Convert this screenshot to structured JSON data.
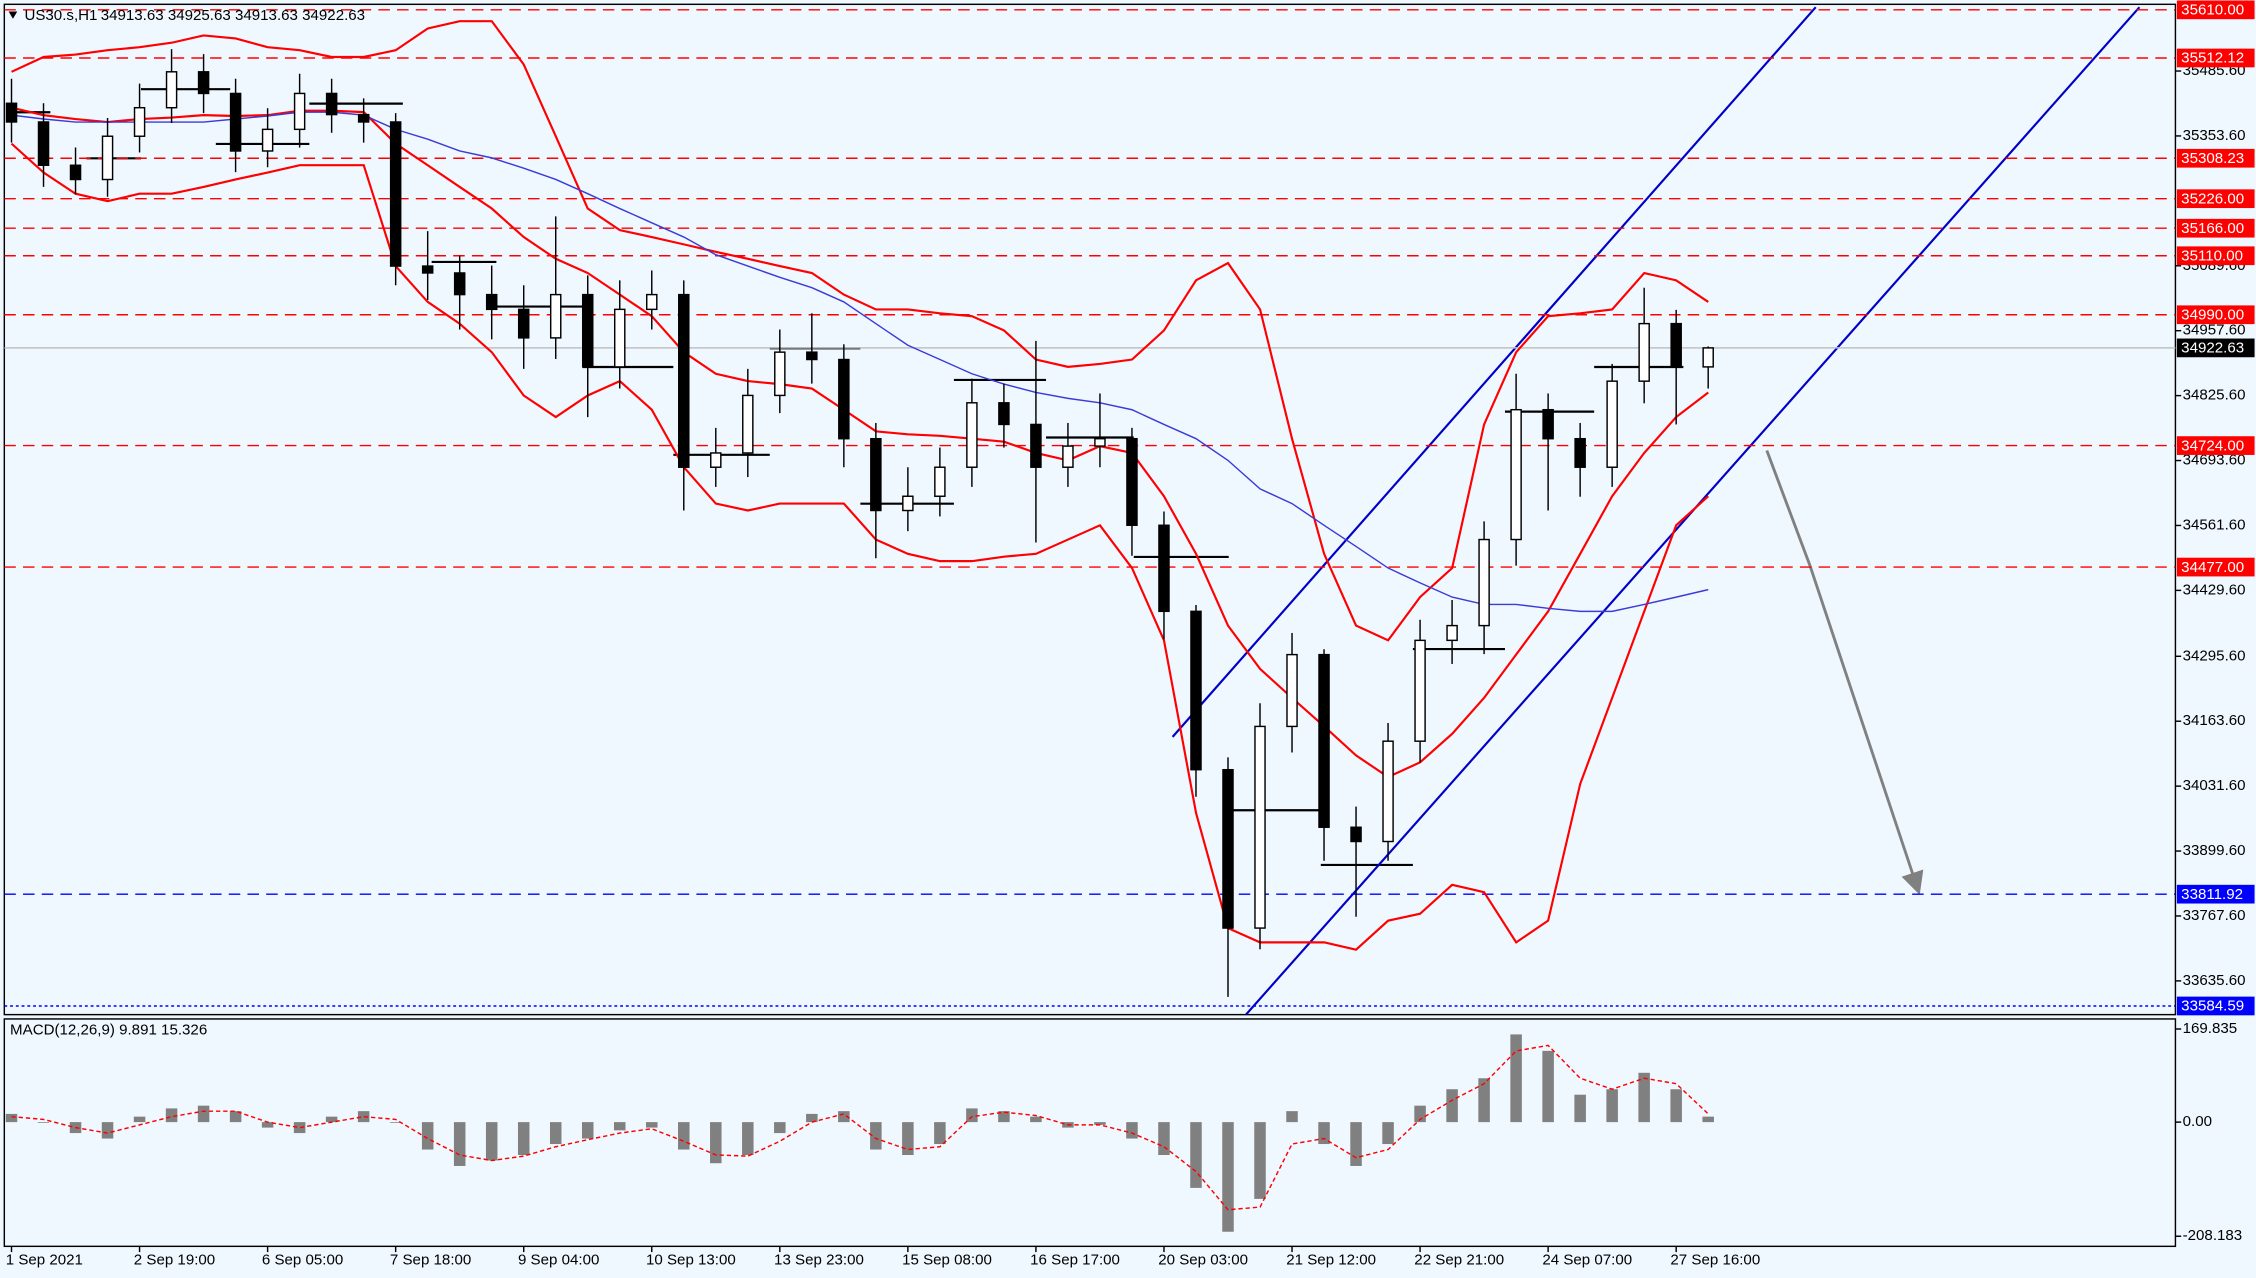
{
  "chart_data": {
    "type": "candlestick",
    "symbol": "US30.s,H1",
    "quote": "34913.63 34925.63 34913.63 34922.63",
    "ylim": [
      33567,
      35630
    ],
    "yticks": [
      {
        "value": 35485.6,
        "label": "35485.60"
      },
      {
        "value": 35353.6,
        "label": "35353.60"
      },
      {
        "value": 35089.6,
        "label": "35089.60"
      },
      {
        "value": 34957.6,
        "label": "34957.60"
      },
      {
        "value": 34825.6,
        "label": "34825.60"
      },
      {
        "value": 34693.6,
        "label": "34693.60"
      },
      {
        "value": 34561.6,
        "label": "34561.60"
      },
      {
        "value": 34429.6,
        "label": "34429.60"
      },
      {
        "value": 34295.6,
        "label": "34295.60"
      },
      {
        "value": 34163.6,
        "label": "34163.60"
      },
      {
        "value": 34031.6,
        "label": "34031.60"
      },
      {
        "value": 33899.6,
        "label": "33899.60"
      },
      {
        "value": 33767.6,
        "label": "33767.60"
      },
      {
        "value": 33635.6,
        "label": "33635.60"
      }
    ],
    "categories": [
      "1 Sep 2021",
      null,
      null,
      null,
      "2 Sep 19:00",
      null,
      null,
      null,
      "6 Sep 05:00",
      null,
      null,
      null,
      "7 Sep 18:00",
      null,
      null,
      null,
      "9 Sep 04:00",
      null,
      null,
      null,
      "10 Sep 13:00",
      null,
      null,
      null,
      "13 Sep 23:00",
      null,
      null,
      null,
      "15 Sep 08:00",
      null,
      null,
      null,
      "16 Sep 17:00",
      null,
      null,
      null,
      "20 Sep 03:00",
      null,
      null,
      null,
      "21 Sep 12:00",
      null,
      null,
      null,
      "22 Sep 21:00",
      null,
      null,
      null,
      "24 Sep 07:00",
      null,
      null,
      null,
      "27 Sep 16:00",
      null
    ],
    "open": [
      35420,
      35382,
      35294,
      35265,
      35353,
      35411,
      35484,
      35440,
      35323,
      35367,
      35440,
      35397,
      35382,
      35089,
      35075,
      35031,
      35001,
      34943,
      35031,
      34884,
      35001,
      35031,
      34680,
      34709,
      34826,
      34914,
      34899,
      34738,
      34592,
      34621,
      34680,
      34811,
      34767,
      34680,
      34723,
      34738,
      34562,
      34387,
      34065,
      33743,
      34153,
      34299,
      33948,
      33919,
      34123,
      34328,
      34358,
      34533,
      34797,
      34738,
      34680,
      34855,
      34972,
      34884
    ],
    "high": [
      35470,
      35420,
      35330,
      35390,
      35460,
      35530,
      35520,
      35470,
      35410,
      35480,
      35470,
      35430,
      35400,
      35160,
      35110,
      35090,
      35050,
      35190,
      35070,
      35060,
      35080,
      35060,
      34760,
      34880,
      34960,
      34993,
      34930,
      34770,
      34680,
      34720,
      34860,
      34850,
      34937,
      34770,
      34830,
      34760,
      34590,
      34400,
      34090,
      34200,
      34343,
      34310,
      33990,
      34160,
      34370,
      34410,
      34570,
      34870,
      34830,
      34770,
      34890,
      35045,
      35000,
      34925.63
    ],
    "low": [
      35340,
      35250,
      35235,
      35230,
      35320,
      35380,
      35400,
      35280,
      35290,
      35330,
      35360,
      35340,
      35050,
      35020,
      34960,
      34940,
      34880,
      34900,
      34782,
      34840,
      34960,
      34592,
      34640,
      34660,
      34790,
      34850,
      34680,
      34495,
      34550,
      34580,
      34640,
      34720,
      34527,
      34640,
      34680,
      34500,
      34330,
      34010,
      33603,
      33700,
      34100,
      33880,
      33766,
      33880,
      34080,
      34280,
      34300,
      34480,
      34592,
      34620,
      34640,
      34810,
      34767,
      34840
    ],
    "close": [
      35382,
      35294,
      35265,
      35353,
      35411,
      35484,
      35440,
      35323,
      35367,
      35440,
      35397,
      35382,
      35089,
      35075,
      35031,
      35001,
      34943,
      35031,
      34884,
      35001,
      35031,
      34680,
      34709,
      34826,
      34914,
      34899,
      34738,
      34592,
      34621,
      34680,
      34811,
      34767,
      34680,
      34723,
      34738,
      34562,
      34387,
      34065,
      33743,
      34153,
      34299,
      33948,
      33919,
      34123,
      34328,
      34358,
      34533,
      34797,
      34738,
      34680,
      34855,
      34972,
      34884,
      34922.63
    ],
    "overlays": [
      {
        "color": "#ff0000",
        "values": [
          35484,
          35514,
          35519,
          35528,
          35534,
          35543,
          35558,
          35552,
          35534,
          35528,
          35514,
          35514,
          35528,
          35572,
          35587,
          35587,
          35499,
          35353,
          35206,
          35162,
          35148,
          35133,
          35118,
          35104,
          35089,
          35075,
          35031,
          35001,
          35001,
          34993,
          34987,
          34958,
          34899,
          34884,
          34890,
          34899,
          34958,
          35060,
          35095,
          35001,
          34738,
          34504,
          34358,
          34328,
          34416,
          34475,
          34767,
          34914,
          34987,
          34993,
          35001,
          35075,
          35060,
          35016
        ]
      },
      {
        "color": "#ff0000",
        "values": [
          35411,
          35396,
          35388,
          35382,
          35388,
          35391,
          35396,
          35394,
          35396,
          35405,
          35405,
          35402,
          35338,
          35294,
          35250,
          35206,
          35148,
          35104,
          35075,
          35031,
          34987,
          34914,
          34870,
          34855,
          34849,
          34840,
          34797,
          34753,
          34747,
          34744,
          34738,
          34732,
          34709,
          34694,
          34723,
          34709,
          34621,
          34504,
          34358,
          34270,
          34211,
          34153,
          34094,
          34050,
          34080,
          34138,
          34211,
          34299,
          34387,
          34504,
          34621,
          34709,
          34782,
          34832
        ]
      },
      {
        "color": "#ff0000",
        "values": [
          35338,
          35279,
          35236,
          35221,
          35236,
          35236,
          35250,
          35265,
          35279,
          35294,
          35294,
          35294,
          35089,
          35016,
          34972,
          34914,
          34826,
          34782,
          34826,
          34855,
          34797,
          34680,
          34606,
          34592,
          34606,
          34606,
          34606,
          34533,
          34504,
          34489,
          34489,
          34498,
          34504,
          34533,
          34562,
          34475,
          34328,
          33977,
          33743,
          33714,
          33714,
          33714,
          33699,
          33758,
          33772,
          33831,
          33816,
          33714,
          33758,
          34036,
          34211,
          34387,
          34562,
          34621
        ]
      },
      {
        "color": "#3b3bd6",
        "values": [
          35396,
          35388,
          35382,
          35382,
          35382,
          35382,
          35382,
          35388,
          35394,
          35402,
          35402,
          35396,
          35367,
          35347,
          35323,
          35309,
          35288,
          35265,
          35236,
          35206,
          35177,
          35148,
          35112,
          35089,
          35066,
          35045,
          35016,
          34972,
          34928,
          34899,
          34870,
          34849,
          34832,
          34820,
          34811,
          34797,
          34767,
          34738,
          34694,
          34636,
          34606,
          34562,
          34519,
          34475,
          34445,
          34416,
          34401,
          34401,
          34393,
          34387,
          34387,
          34401,
          34416,
          34431
        ]
      }
    ],
    "levels": [
      {
        "value": 35610,
        "label": "35610.00",
        "color": "#ff0000",
        "style": "dashed"
      },
      {
        "value": 35512.12,
        "label": "35512.12",
        "color": "#ff0000",
        "style": "dashed"
      },
      {
        "value": 35308.23,
        "label": "35308.23",
        "color": "#ff0000",
        "style": "dashed"
      },
      {
        "value": 35226,
        "label": "35226.00",
        "color": "#ff0000",
        "style": "dashed"
      },
      {
        "value": 35166,
        "label": "35166.00",
        "color": "#ff0000",
        "style": "dashed"
      },
      {
        "value": 35110,
        "label": "35110.00",
        "color": "#ff0000",
        "style": "dashed"
      },
      {
        "value": 34990,
        "label": "34990.00",
        "color": "#ff0000",
        "style": "dashed"
      },
      {
        "value": 34922.63,
        "label": "34922.63",
        "color": "#000000",
        "style": "solid"
      },
      {
        "value": 34724,
        "label": "34724.00",
        "color": "#ff0000",
        "style": "dashed"
      },
      {
        "value": 34477,
        "label": "34477.00",
        "color": "#ff0000",
        "style": "dashed"
      },
      {
        "value": 33811.92,
        "label": "33811.92",
        "color": "#0000ff",
        "style": "dashed"
      },
      {
        "value": 33584.59,
        "label": "33584.59",
        "color": "#0000ff",
        "style": "dotted"
      }
    ],
    "macd": {
      "label": "MACD(12,26,9) 9.891 15.326",
      "ylim": [
        -226.6,
        188.2
      ],
      "yticks": [
        169.835,
        {
          "value": 0,
          "label": "0.00"
        },
        -208.183
      ],
      "histogram": [
        15,
        0,
        -20,
        -30,
        10,
        25,
        30,
        20,
        -10,
        -20,
        10,
        20,
        0,
        -50,
        -80,
        -70,
        -60,
        -40,
        -30,
        -15,
        -10,
        -50,
        -75,
        -60,
        -20,
        15,
        20,
        -50,
        -60,
        -40,
        25,
        20,
        10,
        -10,
        -5,
        -30,
        -60,
        -120,
        -200,
        -140,
        20,
        -40,
        -80,
        -40,
        30,
        60,
        80,
        160,
        130,
        50,
        60,
        90,
        60,
        10
      ],
      "signal": [
        10,
        5,
        -10,
        -20,
        -5,
        10,
        20,
        20,
        0,
        -10,
        0,
        10,
        5,
        -30,
        -60,
        -70,
        -62,
        -45,
        -32,
        -20,
        -12,
        -35,
        -60,
        -62,
        -35,
        0,
        15,
        -30,
        -50,
        -45,
        10,
        18,
        12,
        -5,
        -5,
        -20,
        -45,
        -90,
        -160,
        -155,
        -40,
        -30,
        -65,
        -50,
        5,
        40,
        70,
        130,
        140,
        80,
        60,
        80,
        70,
        15
      ]
    }
  }
}
